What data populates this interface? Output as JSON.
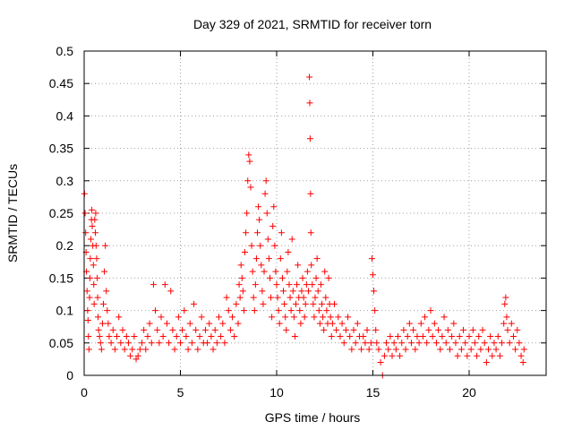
{
  "chart_data": {
    "type": "scatter",
    "title": "Day 329 of 2021, SRMTID for receiver torn",
    "xlabel": "GPS time / hours",
    "ylabel": "SRMTID / TECUs",
    "xlim": [
      0,
      24
    ],
    "ylim": [
      0,
      0.5
    ],
    "xticks": [
      0,
      5,
      10,
      15,
      20
    ],
    "xtick_labels": [
      "0",
      "5",
      "10",
      "15",
      "20"
    ],
    "yticks": [
      0,
      0.05,
      0.1,
      0.15,
      0.2,
      0.25,
      0.3,
      0.35,
      0.4,
      0.45,
      0.5
    ],
    "ytick_labels": [
      "0",
      "0.05",
      "0.1",
      "0.15",
      "0.2",
      "0.25",
      "0.3",
      "0.35",
      "0.4",
      "0.45",
      "0.5"
    ],
    "grid": true,
    "marker": "+",
    "color": "#ff0000",
    "series": [
      {
        "name": "SRMTID",
        "points": [
          [
            0.02,
            0.28
          ],
          [
            0.05,
            0.25
          ],
          [
            0.08,
            0.22
          ],
          [
            0.1,
            0.19
          ],
          [
            0.12,
            0.16
          ],
          [
            0.15,
            0.13
          ],
          [
            0.18,
            0.1
          ],
          [
            0.2,
            0.085
          ],
          [
            0.22,
            0.06
          ],
          [
            0.25,
            0.04
          ],
          [
            0.28,
            0.12
          ],
          [
            0.3,
            0.15
          ],
          [
            0.32,
            0.18
          ],
          [
            0.35,
            0.21
          ],
          [
            0.38,
            0.24
          ],
          [
            0.4,
            0.255
          ],
          [
            0.42,
            0.23
          ],
          [
            0.45,
            0.2
          ],
          [
            0.48,
            0.17
          ],
          [
            0.5,
            0.14
          ],
          [
            0.52,
            0.11
          ],
          [
            0.55,
            0.24
          ],
          [
            0.58,
            0.22
          ],
          [
            0.6,
            0.25
          ],
          [
            0.62,
            0.2
          ],
          [
            0.65,
            0.18
          ],
          [
            0.68,
            0.15
          ],
          [
            0.7,
            0.12
          ],
          [
            0.72,
            0.09
          ],
          [
            0.75,
            0.07
          ],
          [
            0.8,
            0.06
          ],
          [
            0.85,
            0.05
          ],
          [
            0.9,
            0.04
          ],
          [
            0.95,
            0.08
          ],
          [
            1.0,
            0.11
          ],
          [
            1.05,
            0.16
          ],
          [
            1.1,
            0.2
          ],
          [
            1.15,
            0.13
          ],
          [
            1.2,
            0.1
          ],
          [
            1.25,
            0.08
          ],
          [
            1.3,
            0.06
          ],
          [
            1.4,
            0.05
          ],
          [
            1.5,
            0.07
          ],
          [
            1.6,
            0.04
          ],
          [
            1.7,
            0.06
          ],
          [
            1.8,
            0.09
          ],
          [
            1.9,
            0.05
          ],
          [
            2.0,
            0.07
          ],
          [
            2.1,
            0.04
          ],
          [
            2.2,
            0.06
          ],
          [
            2.3,
            0.05
          ],
          [
            2.4,
            0.03
          ],
          [
            2.5,
            0.04
          ],
          [
            2.6,
            0.06
          ],
          [
            2.7,
            0.025
          ],
          [
            2.8,
            0.03
          ],
          [
            2.9,
            0.04
          ],
          [
            3.0,
            0.05
          ],
          [
            3.1,
            0.07
          ],
          [
            3.2,
            0.04
          ],
          [
            3.3,
            0.06
          ],
          [
            3.4,
            0.08
          ],
          [
            3.5,
            0.05
          ],
          [
            3.6,
            0.14
          ],
          [
            3.7,
            0.1
          ],
          [
            3.8,
            0.07
          ],
          [
            3.9,
            0.05
          ],
          [
            4.0,
            0.09
          ],
          [
            4.1,
            0.06
          ],
          [
            4.2,
            0.14
          ],
          [
            4.3,
            0.08
          ],
          [
            4.4,
            0.05
          ],
          [
            4.5,
            0.13
          ],
          [
            4.6,
            0.07
          ],
          [
            4.7,
            0.04
          ],
          [
            4.8,
            0.06
          ],
          [
            4.9,
            0.09
          ],
          [
            5.0,
            0.05
          ],
          [
            5.1,
            0.07
          ],
          [
            5.2,
            0.1
          ],
          [
            5.3,
            0.06
          ],
          [
            5.4,
            0.04
          ],
          [
            5.5,
            0.08
          ],
          [
            5.6,
            0.05
          ],
          [
            5.7,
            0.11
          ],
          [
            5.8,
            0.07
          ],
          [
            5.9,
            0.04
          ],
          [
            6.0,
            0.06
          ],
          [
            6.1,
            0.09
          ],
          [
            6.2,
            0.05
          ],
          [
            6.3,
            0.07
          ],
          [
            6.4,
            0.05
          ],
          [
            6.5,
            0.08
          ],
          [
            6.6,
            0.06
          ],
          [
            6.7,
            0.04
          ],
          [
            6.8,
            0.07
          ],
          [
            6.9,
            0.05
          ],
          [
            7.0,
            0.09
          ],
          [
            7.1,
            0.06
          ],
          [
            7.2,
            0.08
          ],
          [
            7.3,
            0.05
          ],
          [
            7.4,
            0.12
          ],
          [
            7.5,
            0.1
          ],
          [
            7.6,
            0.07
          ],
          [
            7.7,
            0.09
          ],
          [
            7.8,
            0.06
          ],
          [
            7.9,
            0.11
          ],
          [
            8.0,
            0.08
          ],
          [
            8.05,
            0.14
          ],
          [
            8.1,
            0.12
          ],
          [
            8.15,
            0.17
          ],
          [
            8.2,
            0.15
          ],
          [
            8.25,
            0.13
          ],
          [
            8.3,
            0.1
          ],
          [
            8.35,
            0.19
          ],
          [
            8.4,
            0.22
          ],
          [
            8.45,
            0.25
          ],
          [
            8.5,
            0.3
          ],
          [
            8.55,
            0.34
          ],
          [
            8.6,
            0.33
          ],
          [
            8.65,
            0.29
          ],
          [
            8.7,
            0.2
          ],
          [
            8.75,
            0.16
          ],
          [
            8.8,
            0.12
          ],
          [
            8.85,
            0.1
          ],
          [
            8.9,
            0.14
          ],
          [
            8.95,
            0.18
          ],
          [
            9.0,
            0.22
          ],
          [
            9.05,
            0.26
          ],
          [
            9.1,
            0.24
          ],
          [
            9.15,
            0.2
          ],
          [
            9.2,
            0.17
          ],
          [
            9.25,
            0.13
          ],
          [
            9.3,
            0.11
          ],
          [
            9.35,
            0.16
          ],
          [
            9.4,
            0.28
          ],
          [
            9.45,
            0.3
          ],
          [
            9.5,
            0.25
          ],
          [
            9.55,
            0.21
          ],
          [
            9.6,
            0.18
          ],
          [
            9.65,
            0.15
          ],
          [
            9.7,
            0.12
          ],
          [
            9.75,
            0.09
          ],
          [
            9.8,
            0.23
          ],
          [
            9.85,
            0.26
          ],
          [
            9.9,
            0.2
          ],
          [
            9.95,
            0.16
          ],
          [
            10.0,
            0.14
          ],
          [
            10.05,
            0.12
          ],
          [
            10.1,
            0.1
          ],
          [
            10.15,
            0.08
          ],
          [
            10.2,
            0.18
          ],
          [
            10.25,
            0.22
          ],
          [
            10.3,
            0.15
          ],
          [
            10.35,
            0.13
          ],
          [
            10.4,
            0.11
          ],
          [
            10.45,
            0.09
          ],
          [
            10.5,
            0.07
          ],
          [
            10.55,
            0.16
          ],
          [
            10.6,
            0.19
          ],
          [
            10.65,
            0.14
          ],
          [
            10.7,
            0.12
          ],
          [
            10.75,
            0.1
          ],
          [
            10.8,
            0.21
          ],
          [
            10.85,
            0.13
          ],
          [
            10.9,
            0.09
          ],
          [
            10.95,
            0.06
          ],
          [
            11.0,
            0.11
          ],
          [
            11.05,
            0.14
          ],
          [
            11.1,
            0.17
          ],
          [
            11.15,
            0.12
          ],
          [
            11.2,
            0.1
          ],
          [
            11.25,
            0.08
          ],
          [
            11.3,
            0.13
          ],
          [
            11.35,
            0.15
          ],
          [
            11.4,
            0.12
          ],
          [
            11.45,
            0.09
          ],
          [
            11.5,
            0.11
          ],
          [
            11.55,
            0.14
          ],
          [
            11.6,
            0.16
          ],
          [
            11.65,
            0.13
          ],
          [
            11.7,
            0.46
          ],
          [
            11.72,
            0.42
          ],
          [
            11.74,
            0.365
          ],
          [
            11.76,
            0.28
          ],
          [
            11.78,
            0.22
          ],
          [
            11.8,
            0.17
          ],
          [
            11.85,
            0.14
          ],
          [
            11.9,
            0.11
          ],
          [
            11.95,
            0.09
          ],
          [
            12.0,
            0.12
          ],
          [
            12.05,
            0.15
          ],
          [
            12.1,
            0.18
          ],
          [
            12.15,
            0.13
          ],
          [
            12.2,
            0.1
          ],
          [
            12.25,
            0.08
          ],
          [
            12.3,
            0.14
          ],
          [
            12.35,
            0.11
          ],
          [
            12.4,
            0.09
          ],
          [
            12.45,
            0.07
          ],
          [
            12.5,
            0.16
          ],
          [
            12.55,
            0.12
          ],
          [
            12.6,
            0.1
          ],
          [
            12.65,
            0.08
          ],
          [
            12.7,
            0.15
          ],
          [
            12.75,
            0.11
          ],
          [
            12.8,
            0.09
          ],
          [
            12.85,
            0.06
          ],
          [
            12.9,
            0.08
          ],
          [
            13.0,
            0.11
          ],
          [
            13.1,
            0.07
          ],
          [
            13.2,
            0.09
          ],
          [
            13.3,
            0.06
          ],
          [
            13.4,
            0.08
          ],
          [
            13.5,
            0.05
          ],
          [
            13.6,
            0.07
          ],
          [
            13.7,
            0.09
          ],
          [
            13.8,
            0.06
          ],
          [
            13.9,
            0.04
          ],
          [
            14.0,
            0.07
          ],
          [
            14.1,
            0.05
          ],
          [
            14.2,
            0.08
          ],
          [
            14.3,
            0.06
          ],
          [
            14.4,
            0.04
          ],
          [
            14.5,
            0.06
          ],
          [
            14.6,
            0.05
          ],
          [
            14.7,
            0.07
          ],
          [
            14.8,
            0.04
          ],
          [
            14.9,
            0.05
          ],
          [
            14.95,
            0.18
          ],
          [
            15.0,
            0.155
          ],
          [
            15.05,
            0.13
          ],
          [
            15.1,
            0.1
          ],
          [
            15.15,
            0.07
          ],
          [
            15.2,
            0.05
          ],
          [
            15.3,
            0.04
          ],
          [
            15.4,
            0.02
          ],
          [
            15.5,
            0.0
          ],
          [
            15.6,
            0.03
          ],
          [
            15.7,
            0.05
          ],
          [
            15.8,
            0.04
          ],
          [
            15.9,
            0.06
          ],
          [
            16.0,
            0.03
          ],
          [
            16.1,
            0.05
          ],
          [
            16.2,
            0.04
          ],
          [
            16.3,
            0.06
          ],
          [
            16.4,
            0.03
          ],
          [
            16.5,
            0.05
          ],
          [
            16.6,
            0.07
          ],
          [
            16.7,
            0.04
          ],
          [
            16.8,
            0.06
          ],
          [
            16.9,
            0.08
          ],
          [
            17.0,
            0.05
          ],
          [
            17.1,
            0.07
          ],
          [
            17.2,
            0.04
          ],
          [
            17.3,
            0.06
          ],
          [
            17.4,
            0.05
          ],
          [
            17.5,
            0.08
          ],
          [
            17.6,
            0.06
          ],
          [
            17.7,
            0.09
          ],
          [
            17.8,
            0.05
          ],
          [
            17.9,
            0.07
          ],
          [
            18.0,
            0.1
          ],
          [
            18.1,
            0.06
          ],
          [
            18.2,
            0.08
          ],
          [
            18.3,
            0.05
          ],
          [
            18.4,
            0.07
          ],
          [
            18.5,
            0.04
          ],
          [
            18.6,
            0.06
          ],
          [
            18.7,
            0.09
          ],
          [
            18.8,
            0.05
          ],
          [
            18.9,
            0.07
          ],
          [
            19.0,
            0.04
          ],
          [
            19.1,
            0.06
          ],
          [
            19.2,
            0.08
          ],
          [
            19.3,
            0.05
          ],
          [
            19.4,
            0.03
          ],
          [
            19.5,
            0.06
          ],
          [
            19.6,
            0.04
          ],
          [
            19.7,
            0.07
          ],
          [
            19.8,
            0.05
          ],
          [
            19.9,
            0.03
          ],
          [
            20.0,
            0.06
          ],
          [
            20.1,
            0.04
          ],
          [
            20.2,
            0.07
          ],
          [
            20.3,
            0.05
          ],
          [
            20.4,
            0.03
          ],
          [
            20.5,
            0.06
          ],
          [
            20.6,
            0.04
          ],
          [
            20.7,
            0.07
          ],
          [
            20.8,
            0.05
          ],
          [
            20.9,
            0.02
          ],
          [
            21.0,
            0.04
          ],
          [
            21.1,
            0.06
          ],
          [
            21.2,
            0.03
          ],
          [
            21.3,
            0.05
          ],
          [
            21.4,
            0.04
          ],
          [
            21.5,
            0.06
          ],
          [
            21.6,
            0.03
          ],
          [
            21.7,
            0.05
          ],
          [
            21.8,
            0.08
          ],
          [
            21.85,
            0.11
          ],
          [
            21.9,
            0.12
          ],
          [
            21.95,
            0.09
          ],
          [
            22.0,
            0.07
          ],
          [
            22.1,
            0.05
          ],
          [
            22.2,
            0.08
          ],
          [
            22.3,
            0.06
          ],
          [
            22.4,
            0.04
          ],
          [
            22.5,
            0.07
          ],
          [
            22.6,
            0.05
          ],
          [
            22.7,
            0.03
          ],
          [
            22.8,
            0.02
          ],
          [
            22.85,
            0.04
          ]
        ]
      }
    ]
  }
}
